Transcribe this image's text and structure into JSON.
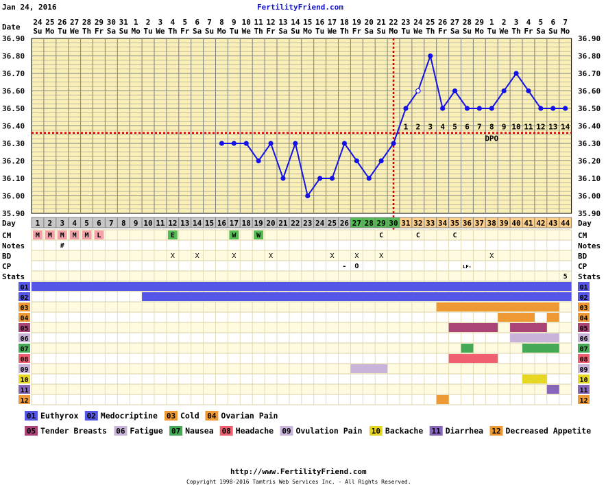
{
  "header": {
    "date": "Jan 24, 2016",
    "site": "FertilityFriend.com"
  },
  "footer": {
    "url": "http://www.FertilityFriend.com",
    "copyright": "Copyright 1998-2016 Tamtris Web Services Inc. - All Rights Reserved."
  },
  "colors": {
    "panel": "#f9efb7",
    "grid": "#808080",
    "border": "#000000",
    "temp_line": "#1212e6",
    "coverline": "#cc0000",
    "ovulation_line": "#cc0000",
    "day_follicular": "#c8c8c8",
    "day_fertile": "#55bb55",
    "day_luteal": "#ffd08a",
    "menses": "#f4a0a8",
    "egg_white": "#55bb55",
    "watery": "#55bb55",
    "row_bg_a": "#fffbe0",
    "row_bg_b": "#ffffff",
    "dpo_text": "#000000"
  },
  "row_labels": {
    "date": "Date",
    "day": "Day",
    "cm": "CM",
    "notes": "Notes",
    "bd": "BD",
    "cp": "CP",
    "stats": "Stats"
  },
  "chart_data": {
    "type": "line",
    "title": "",
    "ylim": [
      35.9,
      36.9
    ],
    "yticks": [
      "35.90",
      "36.00",
      "36.10",
      "36.20",
      "36.30",
      "36.40",
      "36.50",
      "36.60",
      "36.70",
      "36.80",
      "36.90"
    ],
    "dates": [
      "24",
      "25",
      "26",
      "27",
      "28",
      "29",
      "30",
      "31",
      "1",
      "2",
      "3",
      "4",
      "5",
      "6",
      "7",
      "8",
      "9",
      "10",
      "11",
      "12",
      "13",
      "14",
      "15",
      "16",
      "17",
      "18",
      "19",
      "20",
      "21",
      "22",
      "23",
      "24",
      "25",
      "26",
      "27",
      "28",
      "29",
      "1",
      "2",
      "3",
      "4",
      "5",
      "6",
      "7"
    ],
    "weekdays": [
      "Su",
      "Mo",
      "Tu",
      "We",
      "Th",
      "Fr",
      "Sa",
      "Su",
      "Mo",
      "Tu",
      "We",
      "Th",
      "Fr",
      "Sa",
      "Su",
      "Mo",
      "Tu",
      "We",
      "Th",
      "Fr",
      "Sa",
      "Su",
      "Mo",
      "Tu",
      "We",
      "Th",
      "Fr",
      "Sa",
      "Su",
      "Mo",
      "Tu",
      "We",
      "Th",
      "Fr",
      "Sa",
      "Su",
      "Mo",
      "Tu",
      "We",
      "Th",
      "Fr",
      "Sa",
      "Su",
      "Mo"
    ],
    "cycle_days": [
      1,
      2,
      3,
      4,
      5,
      6,
      7,
      8,
      9,
      10,
      11,
      12,
      13,
      14,
      15,
      16,
      17,
      18,
      19,
      20,
      21,
      22,
      23,
      24,
      25,
      26,
      27,
      28,
      29,
      30,
      31,
      32,
      33,
      34,
      35,
      36,
      37,
      38,
      39,
      40,
      41,
      42,
      43,
      44
    ],
    "temperatures": [
      {
        "day": 16,
        "temp": 36.3
      },
      {
        "day": 17,
        "temp": 36.3
      },
      {
        "day": 18,
        "temp": 36.3
      },
      {
        "day": 19,
        "temp": 36.2
      },
      {
        "day": 20,
        "temp": 36.3
      },
      {
        "day": 21,
        "temp": 36.1
      },
      {
        "day": 22,
        "temp": 36.3
      },
      {
        "day": 23,
        "temp": 36.0
      },
      {
        "day": 24,
        "temp": 36.1
      },
      {
        "day": 25,
        "temp": 36.1
      },
      {
        "day": 26,
        "temp": 36.3
      },
      {
        "day": 27,
        "temp": 36.2
      },
      {
        "day": 28,
        "temp": 36.1
      },
      {
        "day": 29,
        "temp": 36.2
      },
      {
        "day": 30,
        "temp": 36.3
      },
      {
        "day": 31,
        "temp": 36.5
      },
      {
        "day": 32,
        "temp": 36.6,
        "open": true
      },
      {
        "day": 33,
        "temp": 36.8
      },
      {
        "day": 34,
        "temp": 36.5
      },
      {
        "day": 35,
        "temp": 36.6
      },
      {
        "day": 36,
        "temp": 36.5
      },
      {
        "day": 37,
        "temp": 36.5
      },
      {
        "day": 38,
        "temp": 36.5
      },
      {
        "day": 39,
        "temp": 36.6
      },
      {
        "day": 40,
        "temp": 36.7
      },
      {
        "day": 41,
        "temp": 36.6
      },
      {
        "day": 42,
        "temp": 36.5
      },
      {
        "day": 43,
        "temp": 36.5
      },
      {
        "day": 44,
        "temp": 36.5
      }
    ],
    "coverline": 36.36,
    "ovulation_day": 30,
    "dpo_label": "DPO",
    "dpo_numbers": [
      1,
      2,
      3,
      4,
      5,
      6,
      7,
      8,
      9,
      10,
      11,
      12,
      13,
      14
    ],
    "fertile_days": [
      27,
      28,
      29,
      30
    ],
    "cm": [
      {
        "day": 1,
        "text": "M",
        "style": "menses"
      },
      {
        "day": 2,
        "text": "M",
        "style": "menses"
      },
      {
        "day": 3,
        "text": "M",
        "style": "menses"
      },
      {
        "day": 4,
        "text": "M",
        "style": "menses"
      },
      {
        "day": 5,
        "text": "M",
        "style": "menses"
      },
      {
        "day": 6,
        "text": "L",
        "style": "menses"
      },
      {
        "day": 12,
        "text": "E",
        "style": "egg_white"
      },
      {
        "day": 17,
        "text": "W",
        "style": "watery"
      },
      {
        "day": 19,
        "text": "W",
        "style": "watery"
      },
      {
        "day": 29,
        "text": "C"
      },
      {
        "day": 32,
        "text": "C"
      },
      {
        "day": 35,
        "text": "C"
      }
    ],
    "notes": [
      {
        "day": 3,
        "text": "#"
      }
    ],
    "bd": [
      12,
      14,
      17,
      20,
      25,
      27,
      29,
      38
    ],
    "cp": [
      {
        "day": 26,
        "text": "-"
      },
      {
        "day": 27,
        "text": "O"
      },
      {
        "day": 36,
        "text": "LF-"
      }
    ],
    "stats": [
      {
        "day": 44,
        "text": "5"
      }
    ],
    "legend": [
      {
        "code": "01",
        "name": "Euthyrox",
        "color": "#5555e6"
      },
      {
        "code": "02",
        "name": "Medocriptine",
        "color": "#5555e6"
      },
      {
        "code": "03",
        "name": "Cold",
        "color": "#ee9933"
      },
      {
        "code": "04",
        "name": "Ovarian Pain",
        "color": "#ee9933"
      },
      {
        "code": "05",
        "name": "Tender Breasts",
        "color": "#aa4477"
      },
      {
        "code": "06",
        "name": "Fatigue",
        "color": "#c8b4d8"
      },
      {
        "code": "07",
        "name": "Nausea",
        "color": "#44aa55"
      },
      {
        "code": "08",
        "name": "Headache",
        "color": "#f06070"
      },
      {
        "code": "09",
        "name": "Ovulation Pain",
        "color": "#c8b4d8"
      },
      {
        "code": "10",
        "name": "Backache",
        "color": "#e6d822"
      },
      {
        "code": "11",
        "name": "Diarrhea",
        "color": "#8866bb"
      },
      {
        "code": "12",
        "name": "Decreased Appetite",
        "color": "#ee9933"
      }
    ],
    "symptom_rows": [
      {
        "code": "01",
        "days": [
          [
            1,
            44
          ]
        ]
      },
      {
        "code": "02",
        "days": [
          [
            10,
            44
          ]
        ]
      },
      {
        "code": "03",
        "days": [
          [
            34,
            43
          ]
        ]
      },
      {
        "code": "04",
        "days": [
          [
            39,
            41
          ],
          [
            43,
            43
          ]
        ]
      },
      {
        "code": "05",
        "days": [
          [
            35,
            38
          ],
          [
            40,
            42
          ]
        ]
      },
      {
        "code": "06",
        "days": [
          [
            40,
            43
          ]
        ]
      },
      {
        "code": "07",
        "days": [
          [
            36,
            36
          ],
          [
            41,
            43
          ]
        ]
      },
      {
        "code": "08",
        "days": [
          [
            35,
            38
          ]
        ]
      },
      {
        "code": "09",
        "days": [
          [
            27,
            29
          ]
        ]
      },
      {
        "code": "10",
        "days": [
          [
            41,
            42
          ]
        ]
      },
      {
        "code": "11",
        "days": [
          [
            43,
            43
          ]
        ]
      },
      {
        "code": "12",
        "days": [
          [
            34,
            34
          ]
        ]
      }
    ]
  }
}
